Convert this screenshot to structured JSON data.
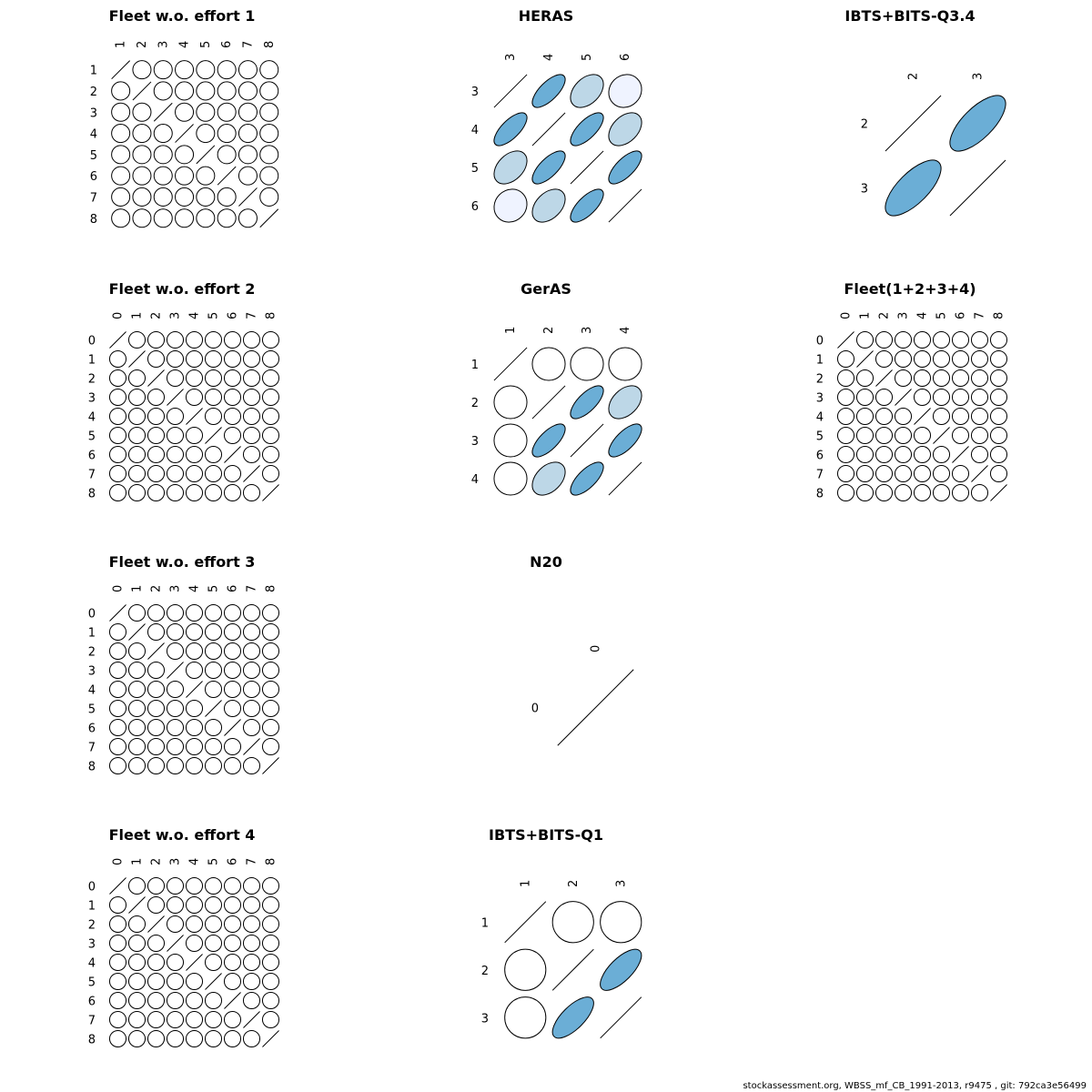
{
  "chart_data": [
    {
      "type": "heatmap",
      "title": "Fleet w.o. effort 1",
      "labels": [
        "1",
        "2",
        "3",
        "4",
        "5",
        "6",
        "7",
        "8"
      ],
      "encoding": "ellipse shape and fill show correlation; diagonal drawn as a line",
      "correlations": [
        [
          1,
          0,
          0,
          0,
          0,
          0,
          0,
          0
        ],
        [
          0,
          1,
          0,
          0,
          0,
          0,
          0,
          0
        ],
        [
          0,
          0,
          1,
          0,
          0,
          0,
          0,
          0
        ],
        [
          0,
          0,
          0,
          1,
          0,
          0,
          0,
          0
        ],
        [
          0,
          0,
          0,
          0,
          1,
          0,
          0,
          0
        ],
        [
          0,
          0,
          0,
          0,
          0,
          1,
          0,
          0
        ],
        [
          0,
          0,
          0,
          0,
          0,
          0,
          1,
          0
        ],
        [
          0,
          0,
          0,
          0,
          0,
          0,
          0,
          1
        ]
      ]
    },
    {
      "type": "heatmap",
      "title": "HERAS",
      "labels": [
        "3",
        "4",
        "5",
        "6"
      ],
      "correlations": [
        [
          1,
          0.7,
          0.4,
          0.1
        ],
        [
          0.7,
          1,
          0.7,
          0.4
        ],
        [
          0.4,
          0.7,
          1,
          0.7
        ],
        [
          0.1,
          0.4,
          0.7,
          1
        ]
      ]
    },
    {
      "type": "heatmap",
      "title": "IBTS+BITS-Q3.4",
      "labels": [
        "2",
        "3"
      ],
      "correlations": [
        [
          1,
          0.7
        ],
        [
          0.7,
          1
        ]
      ]
    },
    {
      "type": "heatmap",
      "title": "Fleet w.o. effort 2",
      "labels": [
        "0",
        "1",
        "2",
        "3",
        "4",
        "5",
        "6",
        "7",
        "8"
      ],
      "correlations": [
        [
          1,
          0,
          0,
          0,
          0,
          0,
          0,
          0,
          0
        ],
        [
          0,
          1,
          0,
          0,
          0,
          0,
          0,
          0,
          0
        ],
        [
          0,
          0,
          1,
          0,
          0,
          0,
          0,
          0,
          0
        ],
        [
          0,
          0,
          0,
          1,
          0,
          0,
          0,
          0,
          0
        ],
        [
          0,
          0,
          0,
          0,
          1,
          0,
          0,
          0,
          0
        ],
        [
          0,
          0,
          0,
          0,
          0,
          1,
          0,
          0,
          0
        ],
        [
          0,
          0,
          0,
          0,
          0,
          0,
          1,
          0,
          0
        ],
        [
          0,
          0,
          0,
          0,
          0,
          0,
          0,
          1,
          0
        ],
        [
          0,
          0,
          0,
          0,
          0,
          0,
          0,
          0,
          1
        ]
      ]
    },
    {
      "type": "heatmap",
      "title": "GerAS",
      "labels": [
        "1",
        "2",
        "3",
        "4"
      ],
      "correlations": [
        [
          1,
          0,
          0,
          0
        ],
        [
          0,
          1,
          0.7,
          0.4
        ],
        [
          0,
          0.7,
          1,
          0.7
        ],
        [
          0,
          0.4,
          0.7,
          1
        ]
      ]
    },
    {
      "type": "heatmap",
      "title": "Fleet(1+2+3+4)",
      "labels": [
        "0",
        "1",
        "2",
        "3",
        "4",
        "5",
        "6",
        "7",
        "8"
      ],
      "correlations": [
        [
          1,
          0,
          0,
          0,
          0,
          0,
          0,
          0,
          0
        ],
        [
          0,
          1,
          0,
          0,
          0,
          0,
          0,
          0,
          0
        ],
        [
          0,
          0,
          1,
          0,
          0,
          0,
          0,
          0,
          0
        ],
        [
          0,
          0,
          0,
          1,
          0,
          0,
          0,
          0,
          0
        ],
        [
          0,
          0,
          0,
          0,
          1,
          0,
          0,
          0,
          0
        ],
        [
          0,
          0,
          0,
          0,
          0,
          1,
          0,
          0,
          0
        ],
        [
          0,
          0,
          0,
          0,
          0,
          0,
          1,
          0,
          0
        ],
        [
          0,
          0,
          0,
          0,
          0,
          0,
          0,
          1,
          0
        ],
        [
          0,
          0,
          0,
          0,
          0,
          0,
          0,
          0,
          1
        ]
      ]
    },
    {
      "type": "heatmap",
      "title": "Fleet w.o. effort 3",
      "labels": [
        "0",
        "1",
        "2",
        "3",
        "4",
        "5",
        "6",
        "7",
        "8"
      ],
      "correlations": [
        [
          1,
          0,
          0,
          0,
          0,
          0,
          0,
          0,
          0
        ],
        [
          0,
          1,
          0,
          0,
          0,
          0,
          0,
          0,
          0
        ],
        [
          0,
          0,
          1,
          0,
          0,
          0,
          0,
          0,
          0
        ],
        [
          0,
          0,
          0,
          1,
          0,
          0,
          0,
          0,
          0
        ],
        [
          0,
          0,
          0,
          0,
          1,
          0,
          0,
          0,
          0
        ],
        [
          0,
          0,
          0,
          0,
          0,
          1,
          0,
          0,
          0
        ],
        [
          0,
          0,
          0,
          0,
          0,
          0,
          1,
          0,
          0
        ],
        [
          0,
          0,
          0,
          0,
          0,
          0,
          0,
          1,
          0
        ],
        [
          0,
          0,
          0,
          0,
          0,
          0,
          0,
          0,
          1
        ]
      ]
    },
    {
      "type": "heatmap",
      "title": "N20",
      "labels": [
        "0"
      ],
      "correlations": [
        [
          1
        ]
      ]
    },
    {
      "type": "heatmap",
      "title": "Fleet w.o. effort 4",
      "labels": [
        "0",
        "1",
        "2",
        "3",
        "4",
        "5",
        "6",
        "7",
        "8"
      ],
      "correlations": [
        [
          1,
          0,
          0,
          0,
          0,
          0,
          0,
          0,
          0
        ],
        [
          0,
          1,
          0,
          0,
          0,
          0,
          0,
          0,
          0
        ],
        [
          0,
          0,
          1,
          0,
          0,
          0,
          0,
          0,
          0
        ],
        [
          0,
          0,
          0,
          1,
          0,
          0,
          0,
          0,
          0
        ],
        [
          0,
          0,
          0,
          0,
          1,
          0,
          0,
          0,
          0
        ],
        [
          0,
          0,
          0,
          0,
          0,
          1,
          0,
          0,
          0
        ],
        [
          0,
          0,
          0,
          0,
          0,
          0,
          1,
          0,
          0
        ],
        [
          0,
          0,
          0,
          0,
          0,
          0,
          0,
          1,
          0
        ],
        [
          0,
          0,
          0,
          0,
          0,
          0,
          0,
          0,
          1
        ]
      ]
    },
    {
      "type": "heatmap",
      "title": "IBTS+BITS-Q1",
      "labels": [
        "1",
        "2",
        "3"
      ],
      "correlations": [
        [
          1,
          0,
          0
        ],
        [
          0,
          1,
          0.7
        ],
        [
          0,
          0.7,
          1
        ]
      ]
    }
  ],
  "colors": {
    "strong": "#6baed6",
    "medium": "#bdd7e7",
    "weak": "#eff3ff",
    "none": "#ffffff",
    "outline": "#000000"
  },
  "footer": "stockassessment.org, WBSS_mf_CB_1991-2013, r9475 , git: 792ca3e56499"
}
